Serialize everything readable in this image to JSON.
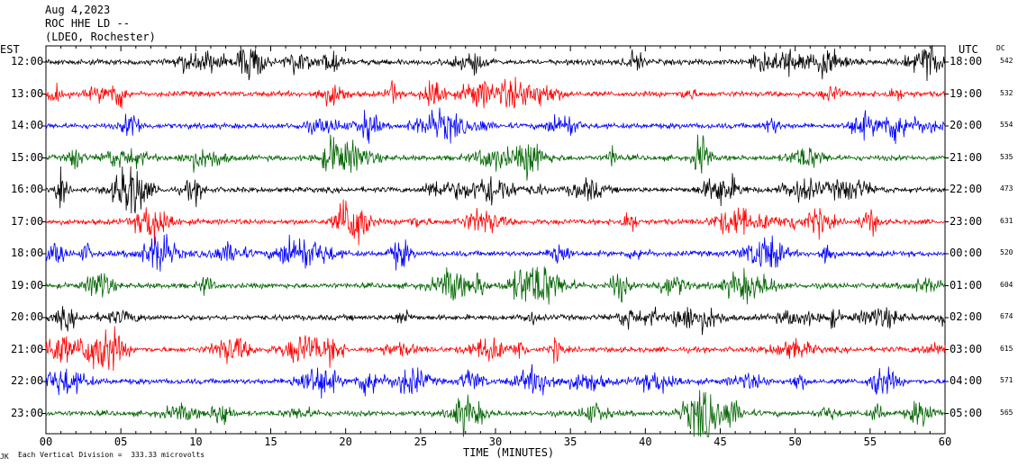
{
  "header": {
    "date": "Aug 4,2023",
    "station": "ROC HHE LD --",
    "network": "(LDEO, Rochester)"
  },
  "left_label": "EST",
  "right_label": "UTC",
  "dc_label": "DC",
  "footer": {
    "xlabel": "TIME (MINUTES)",
    "scale_note": "Each Vertical Division =  333.33 microvolts",
    "tiny_mark": "JK"
  },
  "chart_data": {
    "type": "line",
    "title": "ROC HHE LD --",
    "xlabel": "TIME (MINUTES)",
    "xlim": [
      0,
      60
    ],
    "x_ticks": [
      "00",
      "05",
      "10",
      "15",
      "20",
      "25",
      "30",
      "35",
      "40",
      "45",
      "50",
      "55",
      "60"
    ],
    "colors": [
      "#000000",
      "#ff0000",
      "#0000ff",
      "#006400"
    ],
    "rows": [
      {
        "est": "12:00",
        "utc": "18:00",
        "dc": "542"
      },
      {
        "est": "13:00",
        "utc": "19:00",
        "dc": "532"
      },
      {
        "est": "14:00",
        "utc": "20:00",
        "dc": "554"
      },
      {
        "est": "15:00",
        "utc": "21:00",
        "dc": "535"
      },
      {
        "est": "16:00",
        "utc": "22:00",
        "dc": "473"
      },
      {
        "est": "17:00",
        "utc": "23:00",
        "dc": "631"
      },
      {
        "est": "18:00",
        "utc": "00:00",
        "dc": "520"
      },
      {
        "est": "19:00",
        "utc": "01:00",
        "dc": "604"
      },
      {
        "est": "20:00",
        "utc": "02:00",
        "dc": "674"
      },
      {
        "est": "21:00",
        "utc": "03:00",
        "dc": "615"
      },
      {
        "est": "22:00",
        "utc": "04:00",
        "dc": "571"
      },
      {
        "est": "23:00",
        "utc": "05:00",
        "dc": "565"
      }
    ]
  }
}
